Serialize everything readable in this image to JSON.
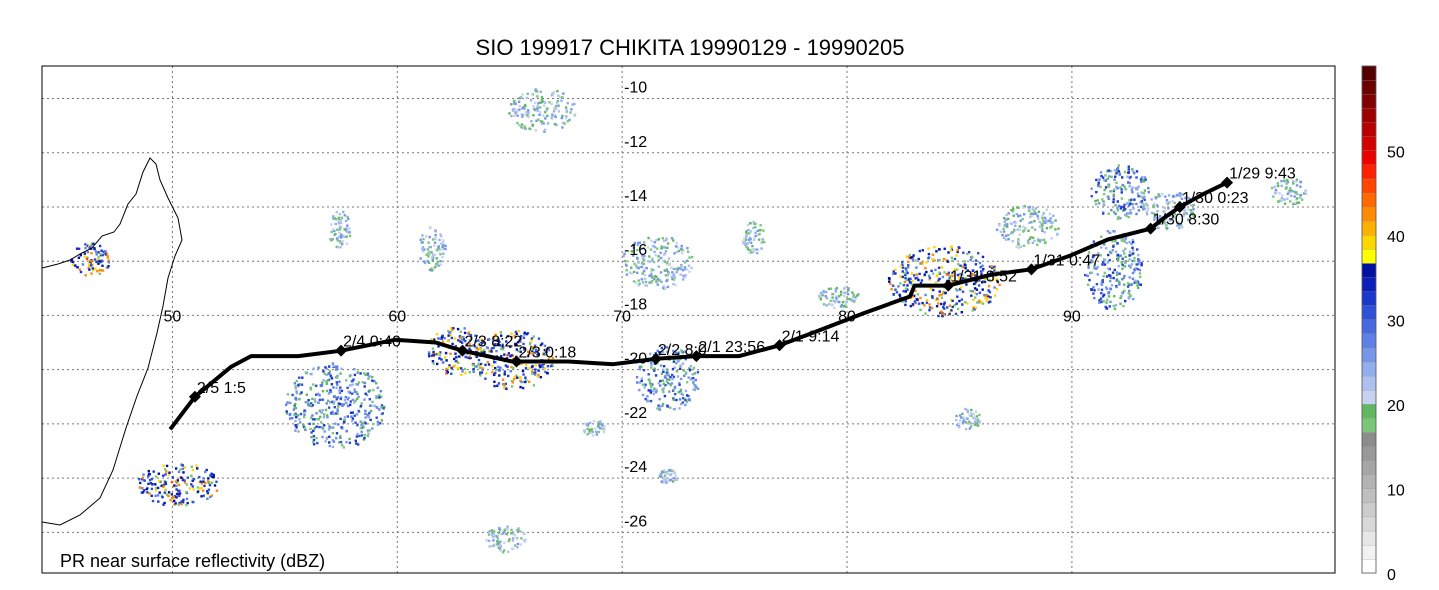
{
  "title": "SIO 199917 CHIKITA 19990129 - 19990205",
  "footer_label": "PR near surface reflectivity (dBZ)",
  "longitude_ticks": [
    "50",
    "60",
    "70",
    "80",
    "90"
  ],
  "latitude_ticks": [
    "-10",
    "-12",
    "-14",
    "-16",
    "-18",
    "-20",
    "-22",
    "-24",
    "-26"
  ],
  "map_extent": {
    "lon_min": 44.2,
    "lon_max": 101.7,
    "lat_max": -8.8,
    "lat_min": -27.5
  },
  "track_points": [
    {
      "lon": 49.9,
      "lat": -22.2
    },
    {
      "lon": 51.0,
      "lat": -21.0,
      "label": "2/5 1:5"
    },
    {
      "lon": 52.6,
      "lat": -19.9
    },
    {
      "lon": 53.5,
      "lat": -19.5
    },
    {
      "lon": 55.6,
      "lat": -19.5
    },
    {
      "lon": 57.5,
      "lat": -19.3,
      "label": "2/4 0:40"
    },
    {
      "lon": 59.9,
      "lat": -18.9
    },
    {
      "lon": 61.7,
      "lat": -19.0
    },
    {
      "lon": 62.9,
      "lat": -19.3,
      "label": "2/3 8:22"
    },
    {
      "lon": 65.1,
      "lat": -19.7
    },
    {
      "lon": 65.3,
      "lat": -19.7,
      "label": "2/3 0:18"
    },
    {
      "lon": 67.6,
      "lat": -19.7
    },
    {
      "lon": 69.6,
      "lat": -19.8
    },
    {
      "lon": 71.5,
      "lat": -19.6,
      "label": "2/2 8:0"
    },
    {
      "lon": 73.3,
      "lat": -19.5,
      "label": "2/1 23:56"
    },
    {
      "lon": 75.2,
      "lat": -19.5
    },
    {
      "lon": 77.0,
      "lat": -19.1,
      "label": "2/1 9:14"
    },
    {
      "lon": 78.6,
      "lat": -18.6
    },
    {
      "lon": 80.8,
      "lat": -17.9
    },
    {
      "lon": 82.8,
      "lat": -17.3
    },
    {
      "lon": 83.0,
      "lat": -16.9
    },
    {
      "lon": 84.5,
      "lat": -16.9,
      "label": "1/31 8:52"
    },
    {
      "lon": 86.4,
      "lat": -16.5
    },
    {
      "lon": 88.2,
      "lat": -16.3,
      "label": "1/31 0:47"
    },
    {
      "lon": 89.9,
      "lat": -15.8
    },
    {
      "lon": 91.6,
      "lat": -15.2
    },
    {
      "lon": 93.5,
      "lat": -14.8,
      "label": "1/30 8:30"
    },
    {
      "lon": 94.1,
      "lat": -14.4
    },
    {
      "lon": 94.8,
      "lat": -14.0,
      "label": "1/30 0:23"
    },
    {
      "lon": 95.9,
      "lat": -13.5
    },
    {
      "lon": 96.9,
      "lat": -13.1,
      "label": "1/29 9:43"
    }
  ],
  "colorbar": {
    "min": 0,
    "max": 60,
    "tick_labels": [
      "0",
      "10",
      "20",
      "30",
      "40",
      "50"
    ],
    "tick_values": [
      0,
      10,
      20,
      30,
      40,
      50
    ],
    "colors": [
      "#ffffff",
      "#f2f2f2",
      "#e6e6e6",
      "#d9d9d9",
      "#cccccc",
      "#bfbfbf",
      "#b3b3b3",
      "#a6a6a6",
      "#999999",
      "#8c8c8c",
      "#79c879",
      "#62b862",
      "#c6d2f0",
      "#aec0ee",
      "#93aeed",
      "#7796ea",
      "#5f80e6",
      "#4869e0",
      "#3050d8",
      "#1a36cc",
      "#0a20b8",
      "#0010a0",
      "#ffff00",
      "#ffd700",
      "#ffb000",
      "#ff8c00",
      "#ff6a00",
      "#ff4500",
      "#ff2000",
      "#ee0000",
      "#d40000",
      "#b80000",
      "#9c0000",
      "#800000",
      "#6a0000",
      "#550000"
    ]
  },
  "rain_clusters": [
    {
      "lon": 62.6,
      "lat": -19.3,
      "rx": 1.3,
      "ry": 0.9,
      "level": "strong"
    },
    {
      "lon": 65.1,
      "lat": -19.6,
      "rx": 1.8,
      "ry": 1.1,
      "level": "strong"
    },
    {
      "lon": 72.0,
      "lat": -20.3,
      "rx": 1.4,
      "ry": 1.2,
      "level": "moderate"
    },
    {
      "lon": 84.3,
      "lat": -16.7,
      "rx": 2.5,
      "ry": 1.3,
      "level": "strong"
    },
    {
      "lon": 91.8,
      "lat": -16.3,
      "rx": 1.3,
      "ry": 1.5,
      "level": "moderate"
    },
    {
      "lon": 92.1,
      "lat": -13.4,
      "rx": 1.3,
      "ry": 1.0,
      "level": "moderate"
    },
    {
      "lon": 57.2,
      "lat": -21.3,
      "rx": 2.2,
      "ry": 1.6,
      "level": "moderate"
    },
    {
      "lon": 50.2,
      "lat": -24.2,
      "rx": 1.8,
      "ry": 0.8,
      "level": "strong"
    },
    {
      "lon": 46.3,
      "lat": -15.9,
      "rx": 0.9,
      "ry": 0.6,
      "level": "strong"
    },
    {
      "lon": 66.4,
      "lat": -10.4,
      "rx": 1.5,
      "ry": 0.8,
      "level": "light"
    },
    {
      "lon": 71.5,
      "lat": -16.0,
      "rx": 1.6,
      "ry": 1.0,
      "level": "light"
    },
    {
      "lon": 88.0,
      "lat": -14.7,
      "rx": 1.4,
      "ry": 0.8,
      "level": "light"
    },
    {
      "lon": 94.3,
      "lat": -14.1,
      "rx": 1.2,
      "ry": 0.7,
      "level": "light"
    },
    {
      "lon": 85.3,
      "lat": -21.8,
      "rx": 0.6,
      "ry": 0.4,
      "level": "light"
    },
    {
      "lon": 64.8,
      "lat": -26.2,
      "rx": 0.9,
      "ry": 0.5,
      "level": "light"
    },
    {
      "lon": 61.5,
      "lat": -15.5,
      "rx": 0.6,
      "ry": 0.8,
      "level": "light"
    },
    {
      "lon": 57.4,
      "lat": -14.8,
      "rx": 0.5,
      "ry": 0.7,
      "level": "light"
    },
    {
      "lon": 75.8,
      "lat": -15.1,
      "rx": 0.5,
      "ry": 0.6,
      "level": "light"
    },
    {
      "lon": 79.6,
      "lat": -17.3,
      "rx": 0.9,
      "ry": 0.4,
      "level": "light"
    },
    {
      "lon": 99.6,
      "lat": -13.4,
      "rx": 0.8,
      "ry": 0.5,
      "level": "light"
    },
    {
      "lon": 72.0,
      "lat": -23.9,
      "rx": 0.4,
      "ry": 0.3,
      "level": "light"
    },
    {
      "lon": 68.7,
      "lat": -22.1,
      "rx": 0.5,
      "ry": 0.3,
      "level": "light"
    }
  ]
}
